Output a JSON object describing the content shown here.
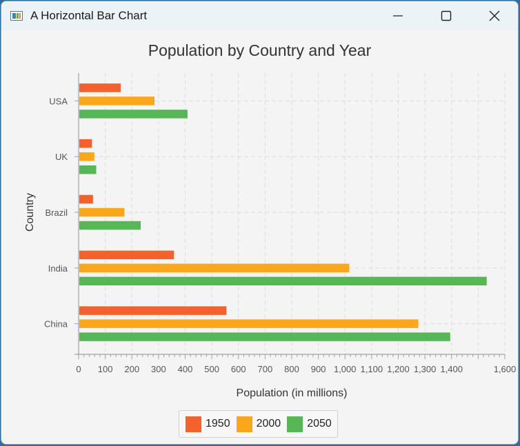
{
  "window": {
    "title": "A Horizontal Bar Chart",
    "icon": "java-app-icon",
    "controls": [
      "minimize-icon",
      "maximize-icon",
      "close-icon"
    ]
  },
  "chart_data": {
    "type": "bar",
    "orientation": "horizontal",
    "title": "Population by Country and Year",
    "xlabel": "Population (in millions)",
    "ylabel": "Country",
    "xlim": [
      0,
      1600
    ],
    "x_ticks": [
      "0",
      "100",
      "200",
      "300",
      "400",
      "500",
      "600",
      "700",
      "800",
      "900",
      "1,000",
      "1,100",
      "1,200",
      "1,300",
      "1,400",
      "1,600"
    ],
    "categories": [
      "USA",
      "UK",
      "Brazil",
      "India",
      "China"
    ],
    "series": [
      {
        "name": "1950",
        "color": "#f3622d",
        "values": [
          158,
          50,
          54,
          358,
          555
        ]
      },
      {
        "name": "2000",
        "color": "#fba71b",
        "values": [
          285,
          59,
          172,
          1016,
          1275
        ]
      },
      {
        "name": "2050",
        "color": "#57b757",
        "values": [
          409,
          66,
          233,
          1532,
          1395
        ]
      }
    ],
    "grid": true,
    "legend_position": "bottom"
  }
}
